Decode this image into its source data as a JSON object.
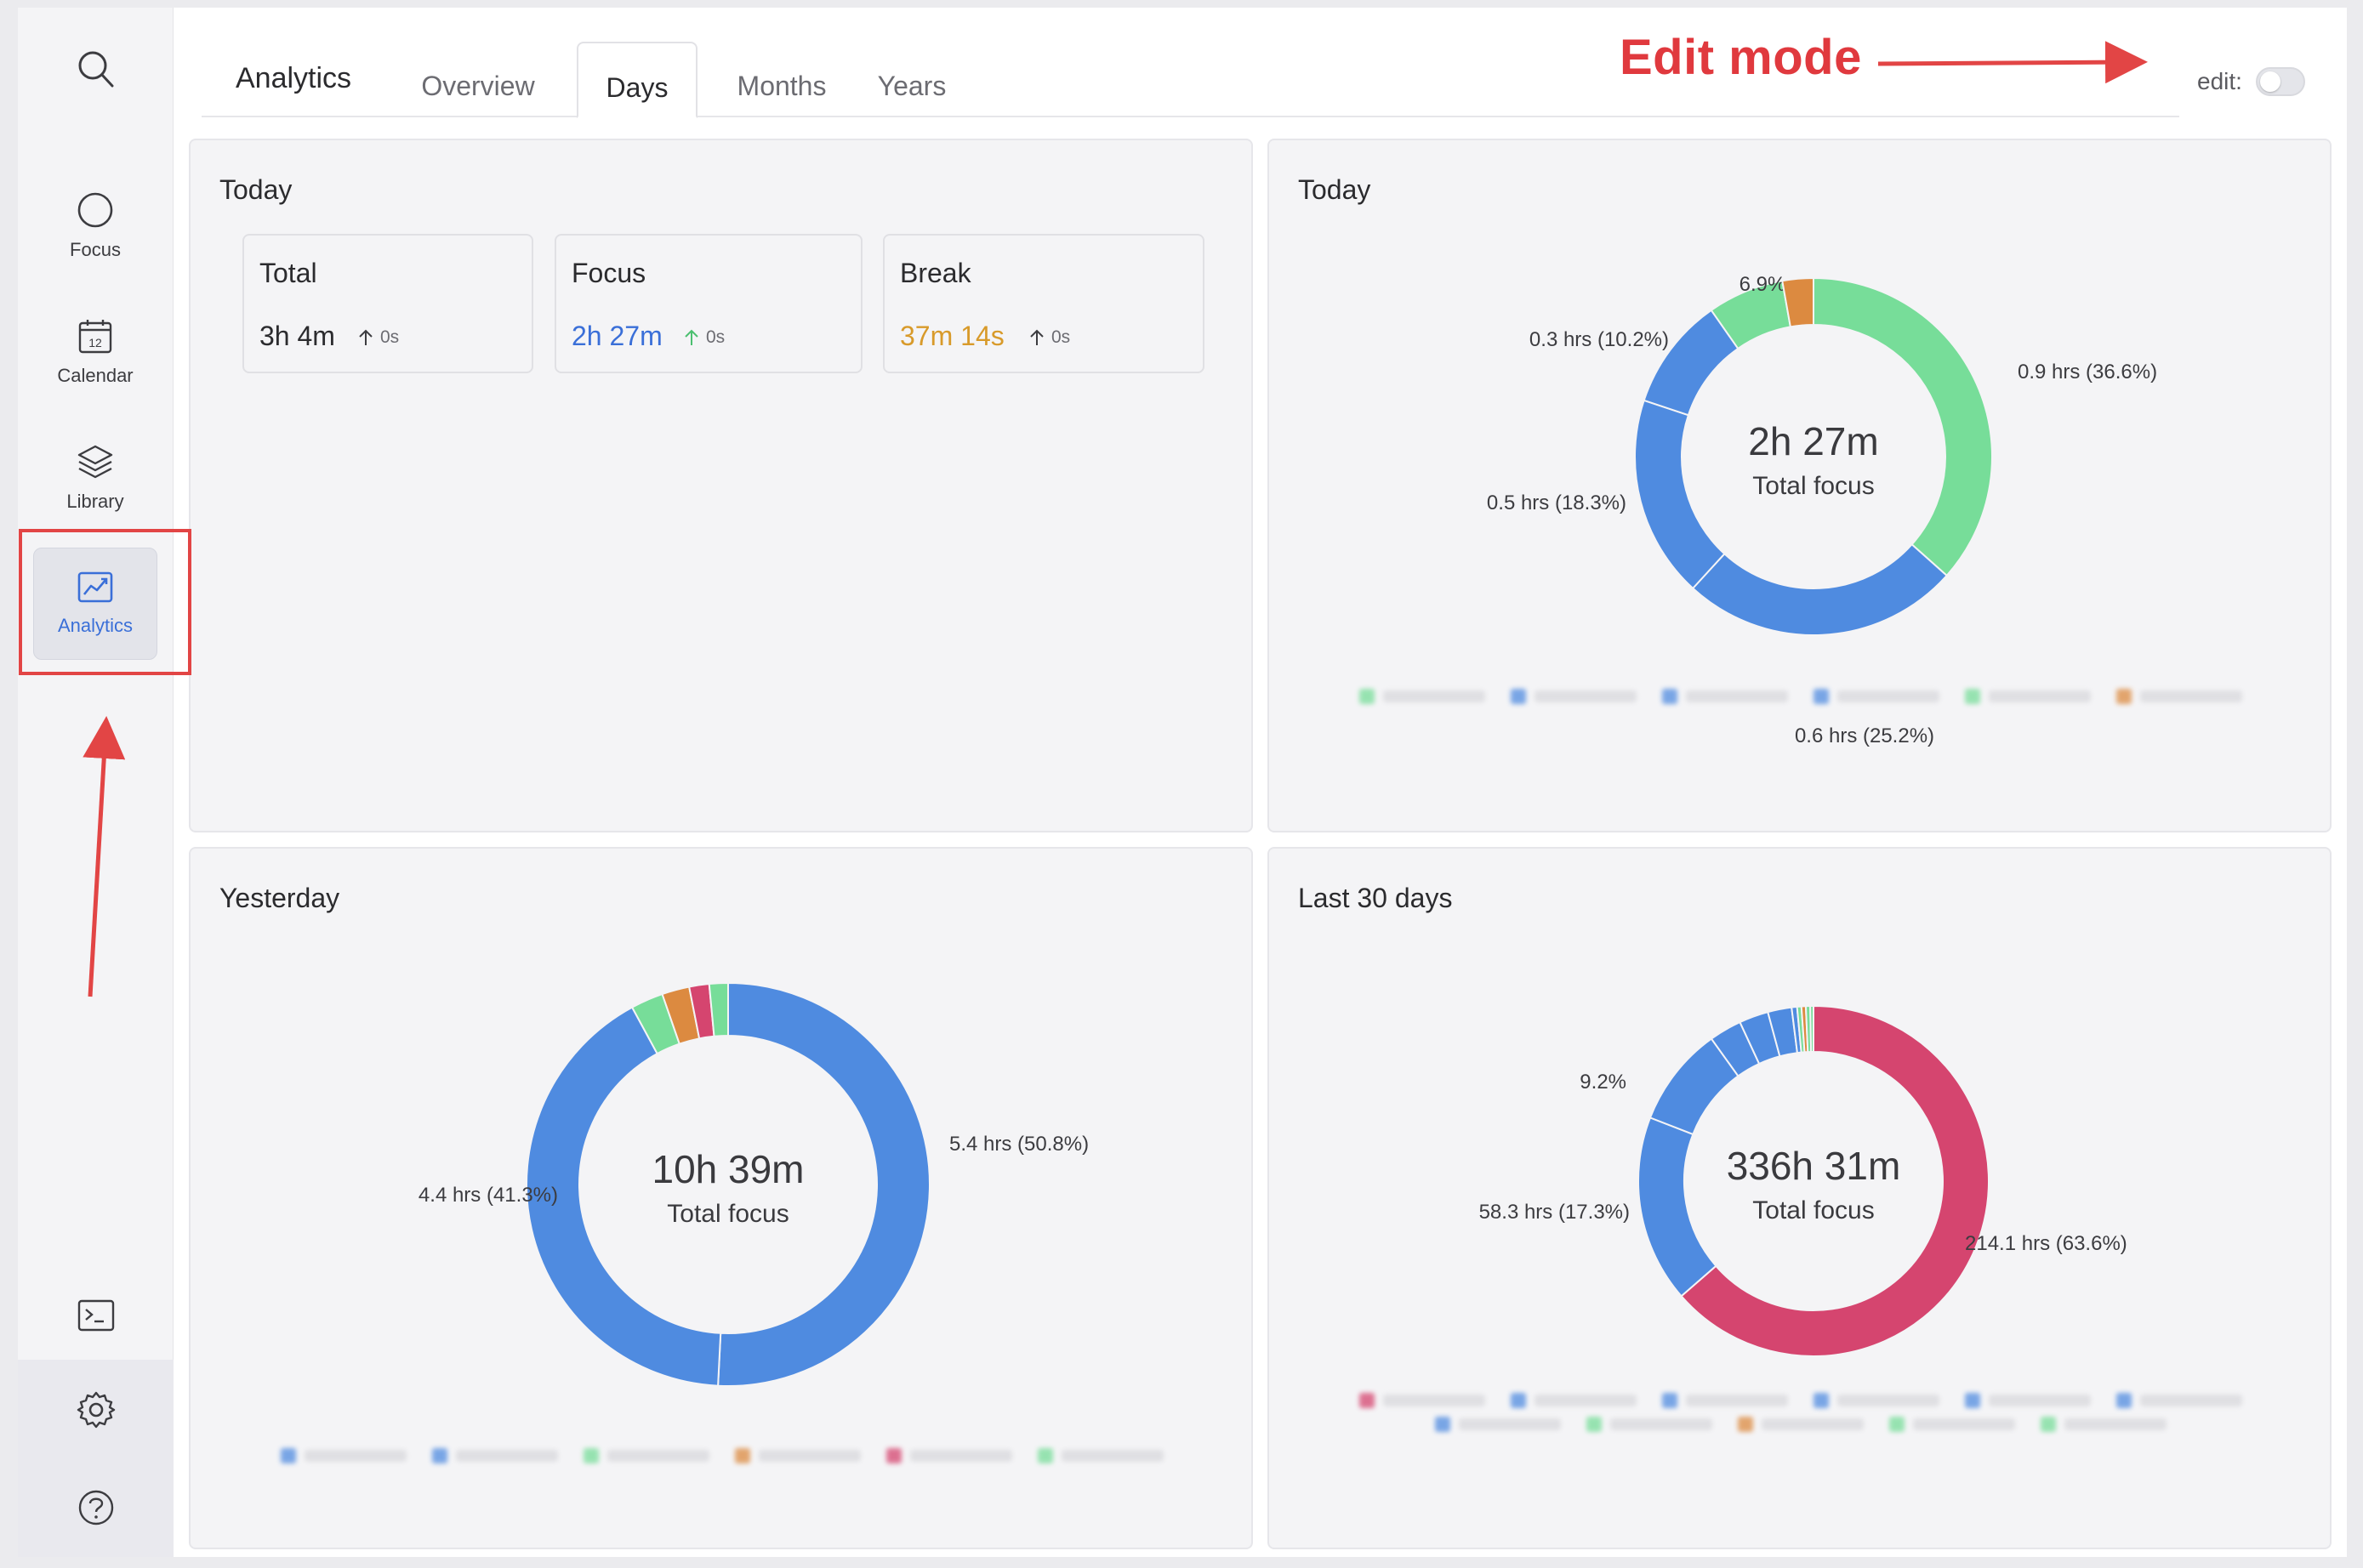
{
  "sidebar": {
    "items": [
      {
        "label": "Focus",
        "icon": "circle-icon"
      },
      {
        "label": "Calendar",
        "icon": "calendar-icon",
        "date_glyph": "12"
      },
      {
        "label": "Library",
        "icon": "layers-icon"
      },
      {
        "label": "Analytics",
        "icon": "chart-icon",
        "active": true
      }
    ],
    "bottom_icons": [
      "terminal-icon",
      "gear-icon",
      "help-icon"
    ]
  },
  "header": {
    "title": "Analytics",
    "tabs": [
      {
        "label": "Overview",
        "active": false
      },
      {
        "label": "Days",
        "active": true
      },
      {
        "label": "Months",
        "active": false
      },
      {
        "label": "Years",
        "active": false
      }
    ],
    "edit_label": "edit:",
    "edit_on": false
  },
  "annotation": {
    "edit_mode": "Edit mode",
    "color": "#e0393e"
  },
  "panels": {
    "today_stats": {
      "title": "Today",
      "cards": [
        {
          "name": "Total",
          "value": "3h 4m",
          "delta": "0s",
          "color": "#2b2b2e"
        },
        {
          "name": "Focus",
          "value": "2h 27m",
          "delta": "0s",
          "color": "#3a6fd8"
        },
        {
          "name": "Break",
          "value": "37m 14s",
          "delta": "0s",
          "color": "#d89a2a"
        }
      ]
    },
    "today_chart": {
      "title": "Today",
      "center_value": "2h 27m",
      "center_label": "Total focus"
    },
    "yesterday_chart": {
      "title": "Yesterday",
      "center_value": "10h 39m",
      "center_label": "Total focus"
    },
    "last30_chart": {
      "title": "Last 30 days",
      "center_value": "336h 31m",
      "center_label": "Total focus"
    }
  },
  "colors": {
    "green": "#77dd99",
    "blue": "#4f8be0",
    "orange": "#dc8a40",
    "crimson": "#d5456f",
    "accent": "#3a6fd8"
  },
  "chart_data": [
    {
      "type": "pie",
      "title": "Today",
      "slices": [
        {
          "value": 36.6,
          "label": "0.9 hrs (36.6%)",
          "color": "#77dd99"
        },
        {
          "value": 25.2,
          "label": "0.6 hrs (25.2%)",
          "color": "#4f8be0"
        },
        {
          "value": 18.3,
          "label": "0.5 hrs (18.3%)",
          "color": "#4f8be0"
        },
        {
          "value": 10.2,
          "label": "0.3 hrs (10.2%)",
          "color": "#4f8be0"
        },
        {
          "value": 6.9,
          "label": "6.9%",
          "color": "#77dd99"
        },
        {
          "value": 2.8,
          "label": "",
          "color": "#dc8a40"
        }
      ],
      "legend_colors": [
        "#77dd99",
        "#4f8be0",
        "#4f8be0",
        "#4f8be0",
        "#77dd99",
        "#dc8a40"
      ]
    },
    {
      "type": "pie",
      "title": "Yesterday",
      "slices": [
        {
          "value": 50.8,
          "label": "5.4 hrs (50.8%)",
          "color": "#4f8be0"
        },
        {
          "value": 41.3,
          "label": "4.4 hrs (41.3%)",
          "color": "#4f8be0"
        },
        {
          "value": 2.6,
          "label": "",
          "color": "#77dd99"
        },
        {
          "value": 2.2,
          "label": "",
          "color": "#dc8a40"
        },
        {
          "value": 1.6,
          "label": "",
          "color": "#d5456f"
        },
        {
          "value": 1.5,
          "label": "",
          "color": "#77dd99"
        }
      ],
      "legend_colors": [
        "#4f8be0",
        "#4f8be0",
        "#77dd99",
        "#dc8a40",
        "#d5456f",
        "#77dd99"
      ]
    },
    {
      "type": "pie",
      "title": "Last 30 days",
      "slices": [
        {
          "value": 63.6,
          "label": "214.1 hrs (63.6%)",
          "color": "#d5456f"
        },
        {
          "value": 17.3,
          "label": "58.3 hrs (17.3%)",
          "color": "#4f8be0"
        },
        {
          "value": 9.2,
          "label": "9.2%",
          "color": "#4f8be0"
        },
        {
          "value": 3.0,
          "label": "",
          "color": "#4f8be0"
        },
        {
          "value": 2.7,
          "label": "",
          "color": "#4f8be0"
        },
        {
          "value": 2.2,
          "label": "",
          "color": "#4f8be0"
        },
        {
          "value": 0.5,
          "label": "",
          "color": "#4f8be0"
        },
        {
          "value": 0.4,
          "label": "",
          "color": "#77dd99"
        },
        {
          "value": 0.4,
          "label": "",
          "color": "#dc8a40"
        },
        {
          "value": 0.4,
          "label": "",
          "color": "#77dd99"
        },
        {
          "value": 0.3,
          "label": "",
          "color": "#77dd99"
        }
      ],
      "legend_colors": [
        "#d5456f",
        "#4f8be0",
        "#4f8be0",
        "#4f8be0",
        "#4f8be0",
        "#4f8be0",
        "#4f8be0",
        "#77dd99",
        "#dc8a40",
        "#77dd99",
        "#77dd99"
      ]
    }
  ]
}
